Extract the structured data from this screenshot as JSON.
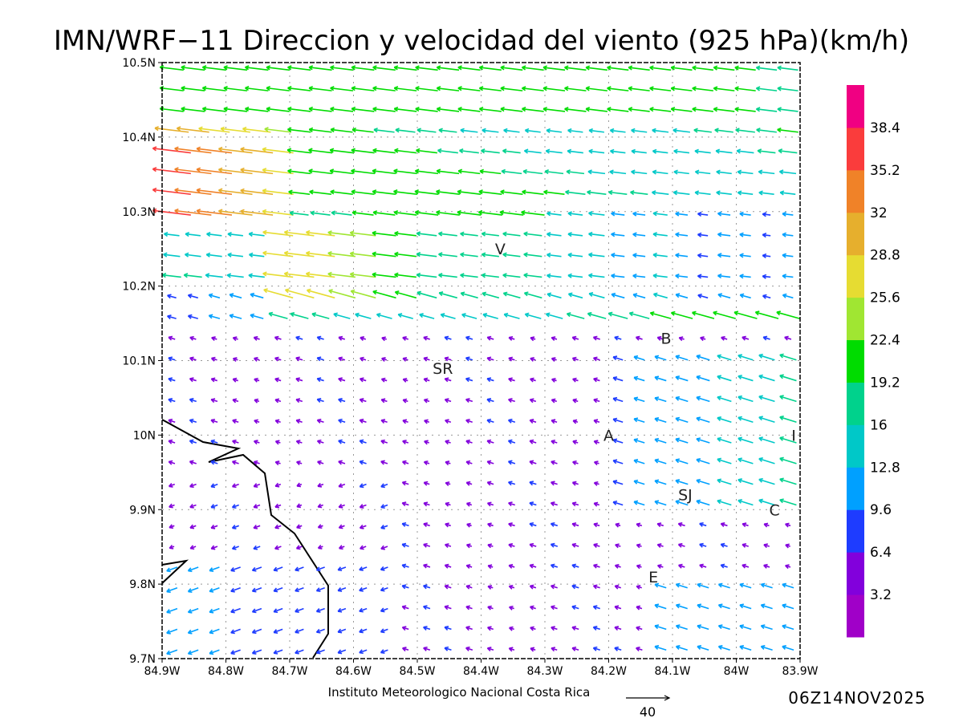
{
  "title": "IMN/WRF−11 Direccion y velocidad del viento (925 hPa)(km/h)",
  "footer": {
    "institution": "Instituto Meteorologico Nacional Costa Rica",
    "timestamp": "06Z14NOV2025",
    "reference_vector_label": "40"
  },
  "chart_data": {
    "type": "vector-field",
    "units": "km/h",
    "level": "925 hPa",
    "lat_range": [
      9.7,
      10.5
    ],
    "lon_range": [
      -84.9,
      -83.9
    ],
    "lat_ticks": [
      "10.5N",
      "10.4N",
      "10.3N",
      "10.2N",
      "10.1N",
      "10N",
      "9.9N",
      "9.8N",
      "9.7N"
    ],
    "lon_ticks": [
      "84.9W",
      "84.8W",
      "84.7W",
      "84.6W",
      "84.5W",
      "84.4W",
      "84.3W",
      "84.2W",
      "84.1W",
      "84W",
      "83.9W"
    ],
    "reference_vector": 40,
    "colorbar": {
      "levels": [
        "3.2",
        "6.4",
        "9.6",
        "12.8",
        "16",
        "19.2",
        "22.4",
        "25.6",
        "28.8",
        "32",
        "35.2",
        "38.4"
      ],
      "colors": [
        "#a000c8",
        "#8200dc",
        "#1e3cff",
        "#00a0ff",
        "#00c8c8",
        "#00d28c",
        "#00dc00",
        "#a0e632",
        "#e6dc32",
        "#e6af2d",
        "#f08228",
        "#fa3c3c",
        "#f00082"
      ]
    },
    "stations": [
      {
        "label": "V",
        "lat": 10.25,
        "lon": -84.37
      },
      {
        "label": "B",
        "lat": 10.13,
        "lon": -84.11
      },
      {
        "label": "SR",
        "lat": 10.09,
        "lon": -84.46
      },
      {
        "label": "A",
        "lat": 10.0,
        "lon": -84.2
      },
      {
        "label": "I",
        "lat": 10.0,
        "lon": -83.91
      },
      {
        "label": "SJ",
        "lat": 9.92,
        "lon": -84.08
      },
      {
        "label": "C",
        "lat": 9.9,
        "lon": -83.94
      },
      {
        "label": "E",
        "lat": 9.81,
        "lon": -84.13
      }
    ]
  }
}
